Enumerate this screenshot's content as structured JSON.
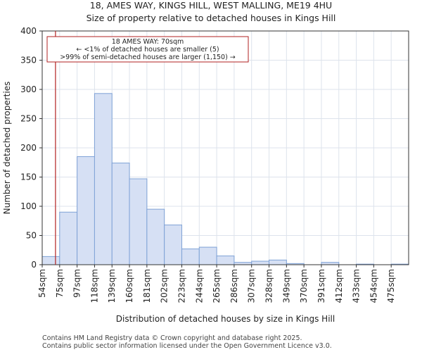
{
  "chart_data": {
    "type": "bar",
    "title": "18, AMES WAY, KINGS HILL, WEST MALLING, ME19 4HU",
    "subtitle": "Size of property relative to detached houses in Kings Hill",
    "xlabel": "Distribution of detached houses by size in Kings Hill",
    "ylabel": "Number of detached properties",
    "categories": [
      "54sqm",
      "75sqm",
      "97sqm",
      "118sqm",
      "139sqm",
      "160sqm",
      "181sqm",
      "202sqm",
      "223sqm",
      "244sqm",
      "265sqm",
      "286sqm",
      "307sqm",
      "328sqm",
      "349sqm",
      "370sqm",
      "391sqm",
      "412sqm",
      "433sqm",
      "454sqm",
      "475sqm"
    ],
    "values": [
      14,
      90,
      185,
      293,
      174,
      147,
      95,
      68,
      27,
      30,
      15,
      4,
      6,
      8,
      2,
      0,
      4,
      0,
      1,
      0,
      1
    ],
    "ylim": [
      0,
      400
    ],
    "yticks": [
      0,
      50,
      100,
      150,
      200,
      250,
      300,
      350,
      400
    ],
    "grid": true,
    "bar_color": "#d6e0f4",
    "bar_edge_color": "#7fa2d6",
    "marker": {
      "value_sqm": 70,
      "color": "#b22222",
      "lines": [
        "18 AMES WAY: 70sqm",
        "← <1% of detached houses are smaller (5)",
        ">99% of semi-detached houses are larger (1,150) →"
      ]
    }
  },
  "footer": {
    "line1": "Contains HM Land Registry data © Crown copyright and database right 2025.",
    "line2": "Contains public sector information licensed under the Open Government Licence v3.0."
  }
}
